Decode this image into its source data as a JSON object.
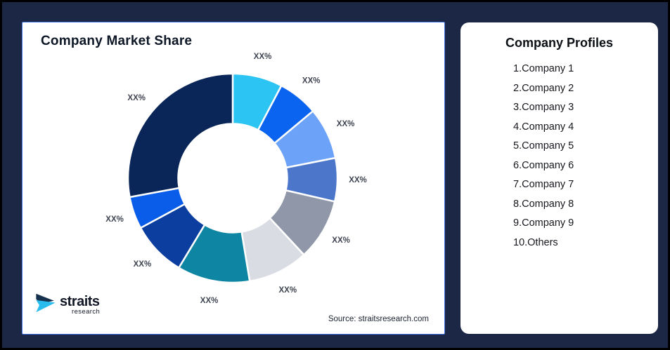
{
  "frame": {
    "background_color": "#1C2645",
    "border_color": "#000000"
  },
  "market_share_card": {
    "title": "Company Market Share",
    "source_text": "Source: straitsresearch.com",
    "border_color": "#4372E4"
  },
  "logo": {
    "primary_text": "straits",
    "secondary_text": "research",
    "icon_navy_color": "#16314E",
    "icon_cyan_color": "#29BCEE"
  },
  "profiles_card": {
    "title": "Company Profiles",
    "items": [
      "1.Company 1",
      "2.Company 2",
      "3.Company 3",
      "4.Company 4",
      "5.Company 5",
      "6.Company 6",
      "7.Company 7",
      "8.Company 8",
      "9.Company 9",
      "10.Others"
    ]
  },
  "chart_data": {
    "type": "pie",
    "title": "Company Market Share",
    "donut": true,
    "inner_radius_ratio": 0.52,
    "start_angle_deg": 0,
    "direction": "clockwise",
    "legend_position": "none",
    "label_text_color": "#3F4450",
    "slice_gap_color": "#FFFFFF",
    "segments": [
      {
        "label": "XX%",
        "value": 7.7,
        "color": "#2BC4F3"
      },
      {
        "label": "XX%",
        "value": 6.2,
        "color": "#0B64EF"
      },
      {
        "label": "XX%",
        "value": 8.0,
        "color": "#6CA2F8"
      },
      {
        "label": "XX%",
        "value": 6.7,
        "color": "#4B76C9"
      },
      {
        "label": "XX%",
        "value": 9.5,
        "color": "#8F97A8"
      },
      {
        "label": "XX%",
        "value": 9.3,
        "color": "#D9DCE3"
      },
      {
        "label": "XX%",
        "value": 11.2,
        "color": "#0E86A3"
      },
      {
        "label": "XX%",
        "value": 8.5,
        "color": "#0B3E9E"
      },
      {
        "label": "XX%",
        "value": 5.0,
        "color": "#0A5DE8"
      },
      {
        "label": "XX%",
        "value": 27.9,
        "color": "#0A2558"
      }
    ]
  }
}
